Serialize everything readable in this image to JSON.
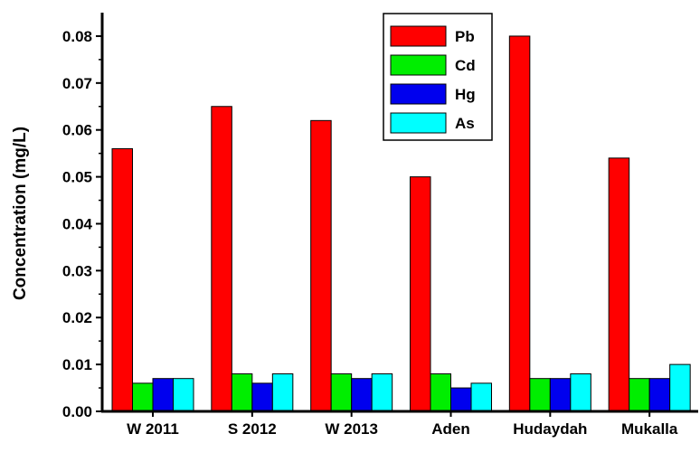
{
  "chart_data": {
    "type": "bar",
    "title": "",
    "xlabel": "",
    "ylabel": "Concentration (mg/L)",
    "ylim": [
      0,
      0.085
    ],
    "yticks": [
      "0.00",
      "0.01",
      "0.02",
      "0.03",
      "0.04",
      "0.05",
      "0.06",
      "0.07",
      "0.08"
    ],
    "categories": [
      "W 2011",
      "S 2012",
      "W 2013",
      "Aden",
      "Hudaydah",
      "Mukalla"
    ],
    "series": [
      {
        "name": "Pb",
        "color": "#ff0000",
        "values": [
          0.056,
          0.065,
          0.062,
          0.05,
          0.08,
          0.054
        ]
      },
      {
        "name": "Cd",
        "color": "#00ee00",
        "values": [
          0.006,
          0.008,
          0.008,
          0.008,
          0.007,
          0.007
        ]
      },
      {
        "name": "Hg",
        "color": "#0000ee",
        "values": [
          0.007,
          0.006,
          0.007,
          0.005,
          0.007,
          0.007
        ]
      },
      {
        "name": "As",
        "color": "#00ffff",
        "values": [
          0.007,
          0.008,
          0.008,
          0.006,
          0.008,
          0.01
        ]
      }
    ],
    "legend_position": "top-center",
    "grid": false
  }
}
